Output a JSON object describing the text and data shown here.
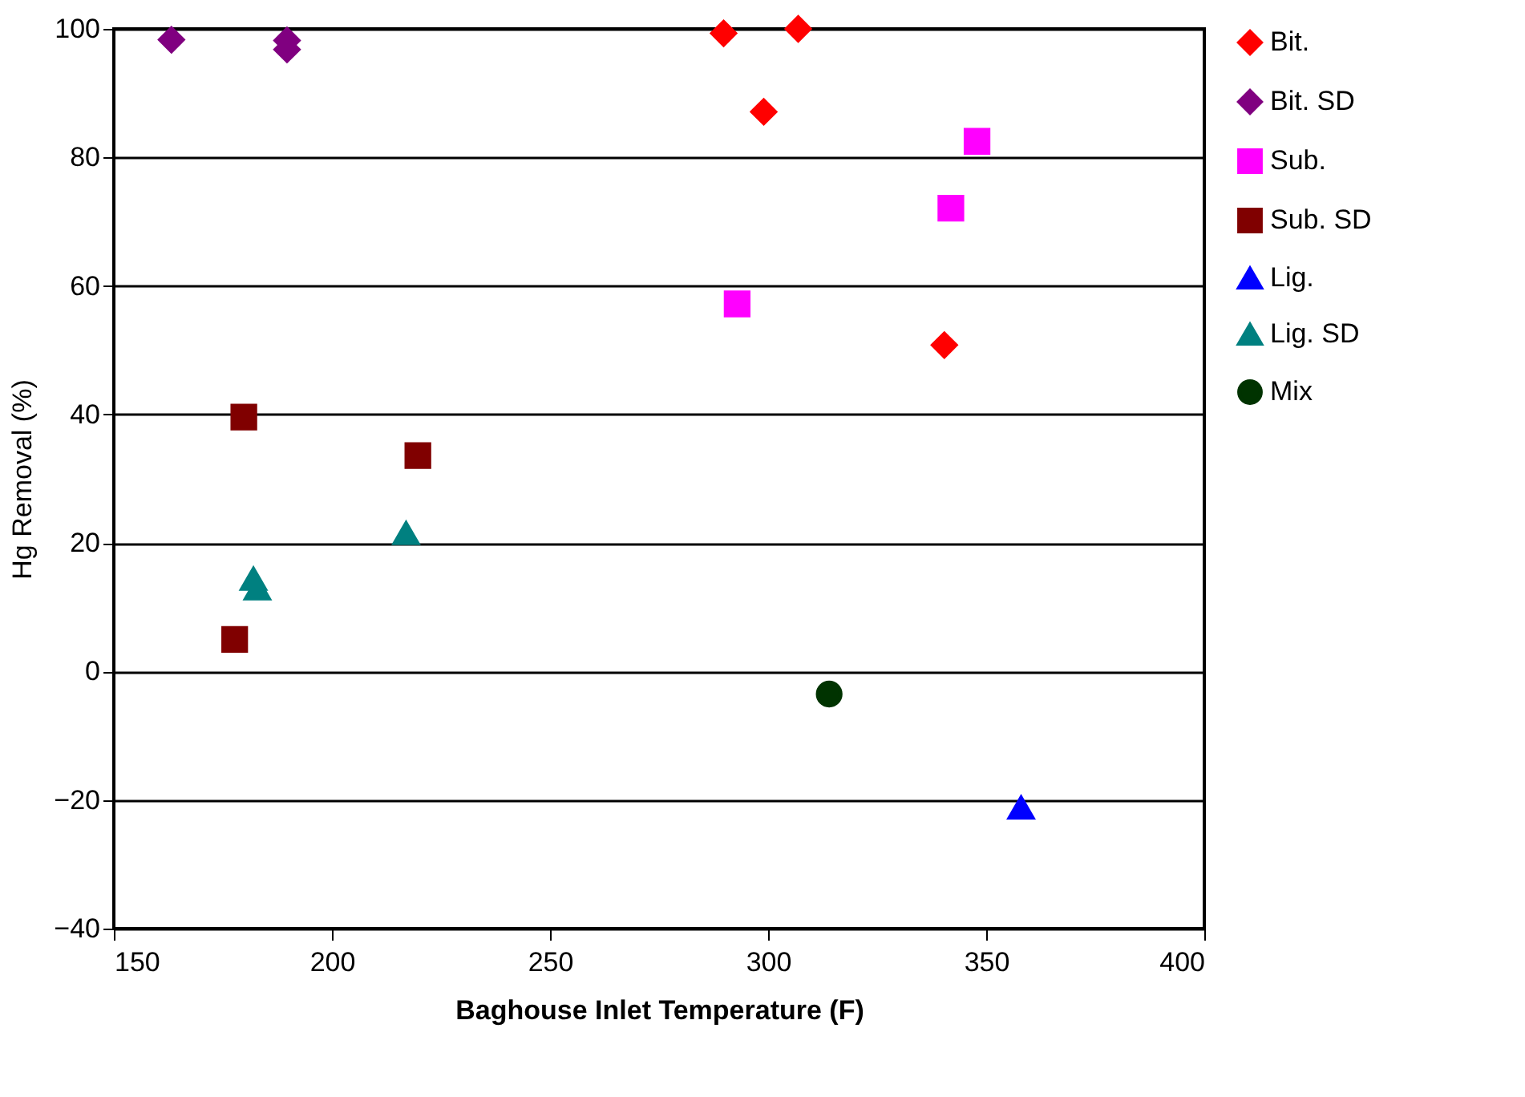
{
  "chart_data": {
    "type": "scatter",
    "xlabel": "Baghouse Inlet Temperature (F)",
    "ylabel": "Hg Removal (%)",
    "xlim": [
      150,
      400
    ],
    "xticks": [
      150,
      200,
      250,
      300,
      350,
      400
    ],
    "ylim": [
      -40,
      100
    ],
    "yticks": [
      -40,
      -20,
      0,
      20,
      40,
      60,
      80,
      100
    ],
    "grid": "y",
    "legend": "right",
    "series": [
      {
        "name": "Bit.",
        "color": "#ff0000",
        "marker": "diamond",
        "x": [
          289.8,
          306.9,
          299,
          340.4
        ],
        "values": [
          99.3,
          100,
          87.1,
          50.8
        ]
      },
      {
        "name": "Bit. SD",
        "color": "#800080",
        "marker": "diamond",
        "x": [
          163.2,
          189.7,
          189.7
        ],
        "values": [
          98.3,
          98.2,
          96.8
        ]
      },
      {
        "name": "Sub.",
        "color": "#ff00ff",
        "marker": "square",
        "x": [
          347.9,
          341.9,
          292.9
        ],
        "values": [
          82.5,
          72.1,
          57.2
        ]
      },
      {
        "name": "Sub. SD",
        "color": "#800000",
        "marker": "square",
        "x": [
          179.8,
          219.7,
          177.7
        ],
        "values": [
          39.6,
          33.6,
          5.0
        ]
      },
      {
        "name": "Lig.",
        "color": "#0000ff",
        "marker": "triangle",
        "x": [
          358
        ],
        "values": [
          -21.2
        ]
      },
      {
        "name": "Lig. SD",
        "color": "#008080",
        "marker": "triangle",
        "x": [
          217,
          182,
          182.9
        ],
        "values": [
          21.5,
          14.4,
          12.9
        ]
      },
      {
        "name": "Mix",
        "color": "#003300",
        "marker": "circle",
        "x": [
          314
        ],
        "values": [
          -3.5
        ]
      }
    ]
  }
}
